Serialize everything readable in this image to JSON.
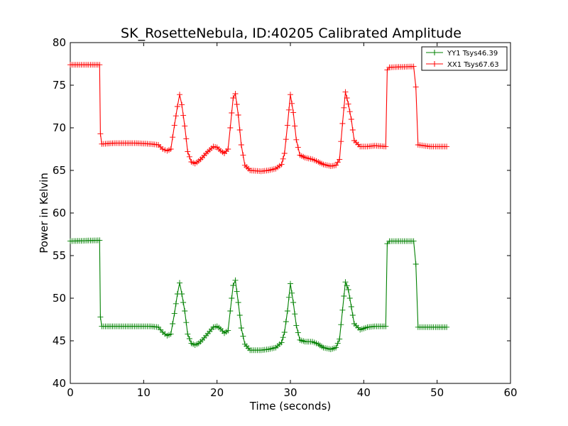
{
  "chart_data": {
    "type": "line",
    "title": "SK_RosetteNebula, ID:40205 Calibrated Amplitude",
    "xlabel": "Time (seconds)",
    "ylabel": "Power in Kelvin",
    "xlim": [
      0,
      60
    ],
    "ylim": [
      40,
      80
    ],
    "xticks": [
      0,
      10,
      20,
      30,
      40,
      50,
      60
    ],
    "yticks": [
      40,
      45,
      50,
      55,
      60,
      65,
      70,
      75,
      80
    ],
    "xtick_labels": [
      "0",
      "10",
      "20",
      "30",
      "40",
      "50",
      "60"
    ],
    "ytick_labels": [
      "40",
      "45",
      "50",
      "55",
      "60",
      "65",
      "70",
      "75",
      "80"
    ],
    "grid": false,
    "legend_position": "top-right",
    "series": [
      {
        "name": "YY1 Tsys46.39",
        "color": "#008000",
        "marker": "+",
        "points": [
          [
            0.0,
            56.7
          ],
          [
            4.0,
            56.8
          ],
          [
            4.1,
            47.8
          ],
          [
            4.3,
            46.7
          ],
          [
            6.0,
            46.7
          ],
          [
            9.0,
            46.7
          ],
          [
            11.0,
            46.7
          ],
          [
            12.0,
            46.6
          ],
          [
            12.6,
            46.0
          ],
          [
            13.2,
            45.6
          ],
          [
            13.7,
            45.8
          ],
          [
            14.2,
            48.2
          ],
          [
            14.6,
            50.5
          ],
          [
            14.9,
            51.8
          ],
          [
            15.2,
            50.5
          ],
          [
            15.6,
            48.5
          ],
          [
            16.0,
            45.8
          ],
          [
            16.5,
            44.7
          ],
          [
            17.0,
            44.5
          ],
          [
            17.5,
            44.7
          ],
          [
            18.0,
            45.1
          ],
          [
            18.5,
            45.6
          ],
          [
            19.0,
            46.1
          ],
          [
            19.5,
            46.6
          ],
          [
            20.0,
            46.7
          ],
          [
            20.5,
            46.4
          ],
          [
            21.0,
            45.9
          ],
          [
            21.5,
            46.2
          ],
          [
            21.8,
            48.5
          ],
          [
            22.2,
            51.5
          ],
          [
            22.5,
            52.1
          ],
          [
            22.9,
            49.5
          ],
          [
            23.3,
            46.5
          ],
          [
            23.8,
            44.6
          ],
          [
            24.5,
            43.9
          ],
          [
            26.0,
            43.9
          ],
          [
            27.0,
            44.0
          ],
          [
            28.0,
            44.2
          ],
          [
            28.8,
            44.8
          ],
          [
            29.2,
            46.0
          ],
          [
            29.6,
            48.5
          ],
          [
            30.0,
            51.7
          ],
          [
            30.4,
            49.5
          ],
          [
            30.8,
            46.8
          ],
          [
            31.3,
            45.1
          ],
          [
            32.0,
            44.9
          ],
          [
            33.0,
            44.9
          ],
          [
            33.8,
            44.6
          ],
          [
            34.5,
            44.2
          ],
          [
            35.5,
            44.0
          ],
          [
            36.2,
            44.2
          ],
          [
            36.7,
            45.2
          ],
          [
            37.1,
            48.6
          ],
          [
            37.5,
            51.9
          ],
          [
            37.9,
            51.0
          ],
          [
            38.3,
            49.0
          ],
          [
            38.7,
            47.0
          ],
          [
            39.5,
            46.3
          ],
          [
            40.5,
            46.6
          ],
          [
            41.5,
            46.7
          ],
          [
            43.0,
            46.7
          ],
          [
            43.2,
            56.4
          ],
          [
            43.5,
            56.7
          ],
          [
            46.8,
            56.7
          ],
          [
            47.1,
            54.0
          ],
          [
            47.4,
            46.6
          ],
          [
            49.0,
            46.6
          ],
          [
            51.3,
            46.6
          ]
        ]
      },
      {
        "name": "XX1 Tsys67.63",
        "color": "#ff0000",
        "marker": "+",
        "points": [
          [
            0.0,
            77.4
          ],
          [
            4.0,
            77.4
          ],
          [
            4.1,
            69.3
          ],
          [
            4.3,
            68.1
          ],
          [
            6.0,
            68.2
          ],
          [
            9.0,
            68.2
          ],
          [
            11.0,
            68.1
          ],
          [
            12.0,
            68.0
          ],
          [
            12.6,
            67.5
          ],
          [
            13.2,
            67.3
          ],
          [
            13.7,
            67.5
          ],
          [
            14.2,
            70.3
          ],
          [
            14.6,
            72.5
          ],
          [
            14.9,
            73.9
          ],
          [
            15.2,
            72.7
          ],
          [
            15.6,
            70.2
          ],
          [
            16.0,
            67.2
          ],
          [
            16.5,
            66.0
          ],
          [
            17.0,
            65.8
          ],
          [
            17.5,
            66.1
          ],
          [
            18.0,
            66.5
          ],
          [
            18.5,
            67.0
          ],
          [
            19.0,
            67.4
          ],
          [
            19.5,
            67.8
          ],
          [
            20.0,
            67.7
          ],
          [
            20.5,
            67.3
          ],
          [
            21.0,
            67.0
          ],
          [
            21.5,
            67.5
          ],
          [
            21.8,
            70.0
          ],
          [
            22.2,
            73.5
          ],
          [
            22.5,
            74.0
          ],
          [
            22.9,
            71.5
          ],
          [
            23.3,
            68.0
          ],
          [
            23.8,
            65.6
          ],
          [
            24.5,
            65.0
          ],
          [
            26.0,
            64.9
          ],
          [
            27.0,
            65.0
          ],
          [
            28.0,
            65.2
          ],
          [
            28.8,
            65.7
          ],
          [
            29.2,
            67.0
          ],
          [
            29.6,
            70.3
          ],
          [
            30.0,
            73.9
          ],
          [
            30.4,
            71.8
          ],
          [
            30.8,
            68.6
          ],
          [
            31.3,
            66.8
          ],
          [
            32.0,
            66.5
          ],
          [
            33.0,
            66.3
          ],
          [
            33.8,
            66.0
          ],
          [
            34.5,
            65.7
          ],
          [
            35.5,
            65.5
          ],
          [
            36.2,
            65.6
          ],
          [
            36.7,
            66.3
          ],
          [
            37.1,
            70.5
          ],
          [
            37.5,
            74.2
          ],
          [
            37.9,
            72.8
          ],
          [
            38.3,
            71.0
          ],
          [
            38.7,
            68.5
          ],
          [
            39.5,
            67.8
          ],
          [
            40.5,
            67.8
          ],
          [
            41.5,
            67.9
          ],
          [
            43.0,
            67.8
          ],
          [
            43.2,
            76.8
          ],
          [
            43.5,
            77.1
          ],
          [
            46.8,
            77.2
          ],
          [
            47.1,
            74.8
          ],
          [
            47.4,
            68.0
          ],
          [
            49.0,
            67.8
          ],
          [
            51.3,
            67.8
          ]
        ]
      }
    ]
  }
}
